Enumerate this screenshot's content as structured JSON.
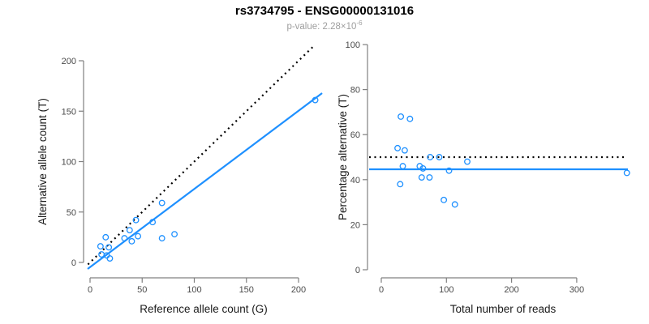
{
  "title": "rs3734795 - ENSG00000131016",
  "subtitle": {
    "text": "p-value: 2.28×10",
    "exponent": "-6"
  },
  "colors": {
    "point_blue": "#1E90FF",
    "line_blue": "#1E90FF",
    "line_black": "#000000",
    "axis_gray": "#808080",
    "tick_text": "#4a4a4a",
    "label_text": "#1a1a1a",
    "subtitle_text": "#9e9e9e"
  },
  "chart_data": [
    {
      "type": "scatter",
      "name": "allele-counts-plot",
      "xlabel": "Reference allele count (G)",
      "ylabel": "Alternative allele count (T)",
      "xticks": [
        0,
        50,
        100,
        150,
        200
      ],
      "yticks": [
        0,
        50,
        100,
        150,
        200
      ],
      "xlim": [
        -2,
        223
      ],
      "ylim": [
        -6,
        215
      ],
      "grid": false,
      "points": [
        [
          10,
          16
        ],
        [
          11,
          8
        ],
        [
          15,
          25
        ],
        [
          16,
          7
        ],
        [
          18,
          15
        ],
        [
          19,
          4
        ],
        [
          33,
          24
        ],
        [
          38,
          32
        ],
        [
          40,
          21
        ],
        [
          44,
          42
        ],
        [
          46,
          26
        ],
        [
          60,
          40
        ],
        [
          69,
          59
        ],
        [
          69,
          24
        ],
        [
          81,
          28
        ],
        [
          216,
          161
        ]
      ],
      "lines": [
        {
          "name": "identity-line",
          "style": "dotted",
          "color": "black",
          "x1": -2,
          "y1": -2,
          "x2": 214,
          "y2": 214
        },
        {
          "name": "regression-line",
          "style": "solid",
          "color": "blue",
          "x1": -2.3,
          "y1": -6.4,
          "x2": 222.6,
          "y2": 167.9
        }
      ]
    },
    {
      "type": "scatter",
      "name": "percentage-vs-reads-plot",
      "xlabel": "Total number of reads",
      "ylabel": "Percentage alternative (T)",
      "xticks": [
        0,
        100,
        200,
        300
      ],
      "yticks": [
        0,
        20,
        40,
        60,
        80,
        100
      ],
      "xlim": [
        -19,
        379
      ],
      "ylim": [
        0,
        100
      ],
      "grid": false,
      "points": [
        [
          30,
          68
        ],
        [
          44,
          67
        ],
        [
          25,
          54
        ],
        [
          36,
          53
        ],
        [
          75,
          50
        ],
        [
          89,
          50
        ],
        [
          33,
          46
        ],
        [
          59,
          46
        ],
        [
          64,
          45
        ],
        [
          104,
          44
        ],
        [
          132,
          48
        ],
        [
          62,
          41
        ],
        [
          74,
          41
        ],
        [
          29,
          38
        ],
        [
          96,
          31
        ],
        [
          113,
          29
        ],
        [
          377,
          43
        ]
      ],
      "lines": [
        {
          "name": "expected-percentage-line",
          "style": "dotted",
          "color": "black",
          "x1": -18.7,
          "y1": 50,
          "x2": 373.6,
          "y2": 50
        },
        {
          "name": "observed-percentage-line",
          "style": "solid",
          "color": "blue",
          "x1": -18.7,
          "y1": 44.6,
          "x2": 378.6,
          "y2": 44.6
        }
      ]
    }
  ]
}
